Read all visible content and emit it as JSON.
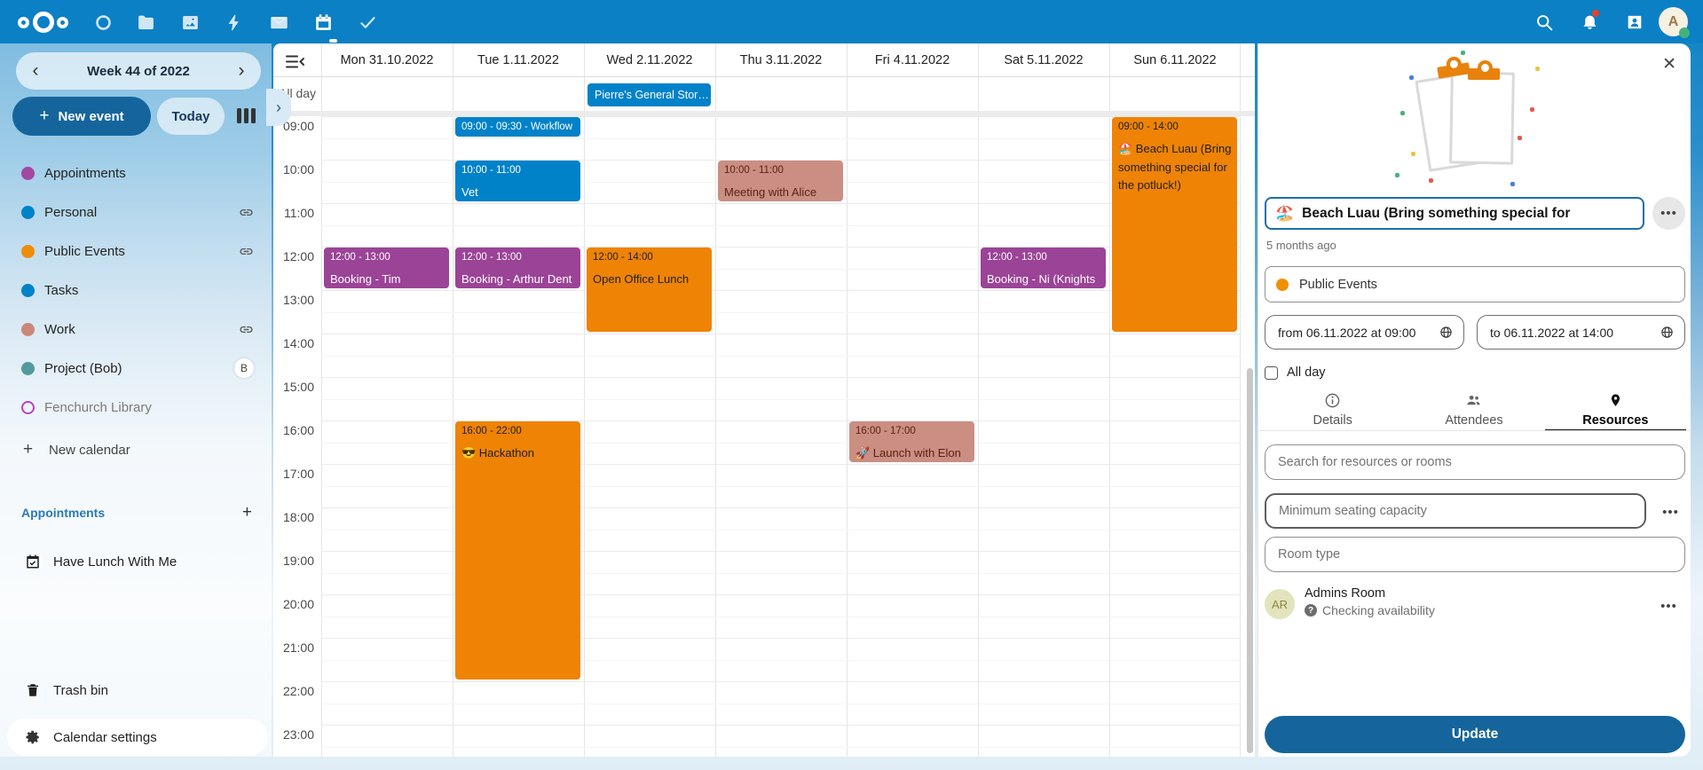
{
  "topbar": {
    "apps": [
      {
        "name": "dashboard"
      },
      {
        "name": "files"
      },
      {
        "name": "photos"
      },
      {
        "name": "activity"
      },
      {
        "name": "mail"
      },
      {
        "name": "calendar",
        "active": true
      },
      {
        "name": "tasks"
      }
    ],
    "avatar_letter": "A"
  },
  "sidebar": {
    "week_label": "Week 44 of 2022",
    "new_event_label": "New event",
    "today_label": "Today",
    "calendars": [
      {
        "name": "Appointments",
        "color": "#a347a0",
        "style": "dot"
      },
      {
        "name": "Personal",
        "color": "#0082c9",
        "style": "dot",
        "trailing": "link"
      },
      {
        "name": "Public Events",
        "color": "#ee8d09",
        "style": "dot",
        "trailing": "link"
      },
      {
        "name": "Tasks",
        "color": "#0082c9",
        "style": "dot"
      },
      {
        "name": "Work",
        "color": "#c98879",
        "style": "dot",
        "trailing": "link"
      },
      {
        "name": "Project (Bob)",
        "color": "#539a9e",
        "style": "dot",
        "trailing": "badge",
        "badge": "B"
      },
      {
        "name": "Fenchurch Library",
        "color": "#bf3fbf",
        "style": "outline",
        "muted": true
      }
    ],
    "new_calendar_label": "New calendar",
    "appointments_heading": "Appointments",
    "appointment_items": [
      "Have Lunch With Me"
    ],
    "trash_label": "Trash bin",
    "settings_label": "Calendar settings"
  },
  "calendar": {
    "allday_label": "All day",
    "day_labels": [
      "Mon 31.10.2022",
      "Tue 1.11.2022",
      "Wed 2.11.2022",
      "Thu 3.11.2022",
      "Fri 4.11.2022",
      "Sat 5.11.2022",
      "Sun 6.11.2022"
    ],
    "times": [
      "09:00",
      "10:00",
      "11:00",
      "12:00",
      "13:00",
      "14:00",
      "15:00",
      "16:00",
      "17:00",
      "18:00",
      "19:00",
      "20:00",
      "21:00",
      "22:00",
      "23:00"
    ],
    "allday_events": [
      {
        "day": 2,
        "title": "Pierre's General Stor…",
        "color": "blue"
      }
    ],
    "events": [
      {
        "day": 0,
        "start": 12,
        "end": 13,
        "time": "12:00 - 13:00",
        "title": "Booking - Tim (Wizard)",
        "color": "purple"
      },
      {
        "day": 1,
        "start": 9,
        "end": 9.5,
        "time": "09:00 - 09:30 - Workflow",
        "title": "",
        "color": "blue"
      },
      {
        "day": 1,
        "start": 10,
        "end": 11,
        "time": "10:00 - 11:00",
        "title": "Vet",
        "color": "blue"
      },
      {
        "day": 1,
        "start": 12,
        "end": 13,
        "time": "12:00 - 13:00",
        "title": "Booking - Arthur Dent",
        "color": "purple"
      },
      {
        "day": 1,
        "start": 16,
        "end": 22,
        "time": "16:00 - 22:00",
        "title": "😎 Hackathon",
        "color": "orange"
      },
      {
        "day": 2,
        "start": 12,
        "end": 14,
        "time": "12:00 - 14:00",
        "title": "Open Office Lunch",
        "color": "orange"
      },
      {
        "day": 3,
        "start": 10,
        "end": 11,
        "time": "10:00 - 11:00",
        "title": "Meeting with Alice",
        "color": "salmon"
      },
      {
        "day": 4,
        "start": 16,
        "end": 17,
        "time": "16:00 - 17:00",
        "title": "🚀 Launch with Elon",
        "color": "salmon"
      },
      {
        "day": 5,
        "start": 12,
        "end": 13,
        "time": "12:00 - 13:00",
        "title": "Booking - Ni (Knights",
        "color": "purple"
      },
      {
        "day": 6,
        "start": 9,
        "end": 14,
        "time": "09:00 - 14:00",
        "title": "🏖️ Beach Luau (Bring something special for the potluck!)",
        "color": "orange"
      }
    ],
    "event_colors": {
      "blue": {
        "bg": "#0082c9",
        "text": "#ffffff"
      },
      "purple": {
        "bg": "#9b4397",
        "text": "#ffffff"
      },
      "orange": {
        "bg": "#ee8306",
        "text": "#1f1f1f"
      },
      "salmon": {
        "bg": "#ca8e83",
        "text": "#5c1f12"
      }
    }
  },
  "panel": {
    "title_emoji": "🏖️",
    "title": "Beach Luau (Bring something special for",
    "modified": "5 months ago",
    "calendar_select": {
      "label": "Public Events",
      "color": "#ef9005"
    },
    "from_label": "from 06.11.2022 at 09:00",
    "to_label": "to 06.11.2022 at 14:00",
    "all_day_label": "All day",
    "tabs": [
      {
        "label": "Details",
        "icon": "info-icon",
        "active": false
      },
      {
        "label": "Attendees",
        "icon": "people-icon",
        "active": false
      },
      {
        "label": "Resources",
        "icon": "pin-icon",
        "active": true
      }
    ],
    "search_placeholder": "Search for resources or rooms",
    "seating_placeholder": "Minimum seating capacity",
    "room_type_placeholder": "Room type",
    "resource": {
      "initials": "AR",
      "name": "Admins Room",
      "status": "Checking availability"
    },
    "update_label": "Update"
  }
}
